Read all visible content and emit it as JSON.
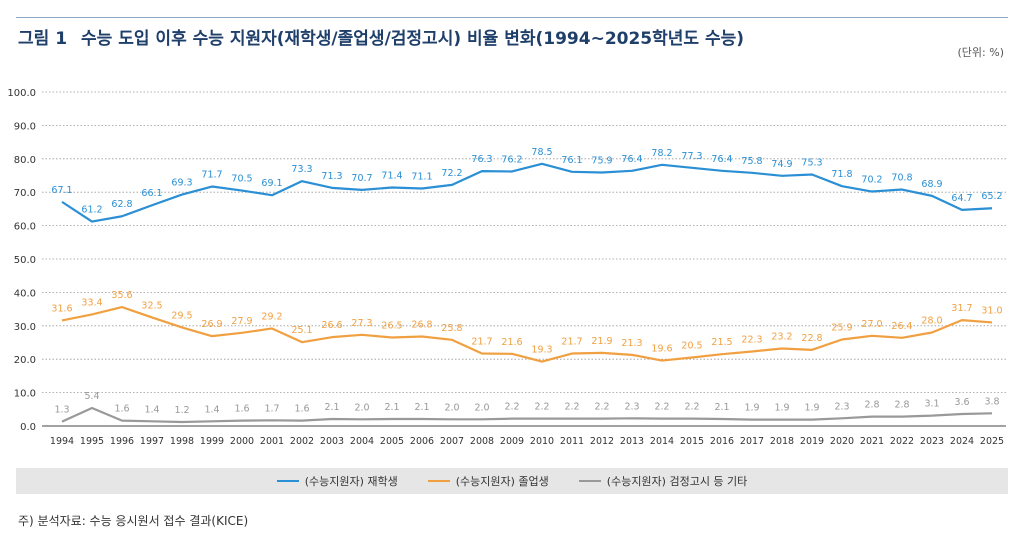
{
  "header": {
    "figure_label": "그림 1",
    "title": "수능 도입 이후 수능 지원자(재학생/졸업생/검정고시) 비율 변화(1994~2025학년도 수능)",
    "unit": "(단위: %)"
  },
  "footer": {
    "source": "주) 분석자료: 수능 응시원서 접수 결과(KICE)"
  },
  "chart_data": {
    "type": "line",
    "x": [
      "1994",
      "1995",
      "1996",
      "1997",
      "1998",
      "1999",
      "2000",
      "2001",
      "2002",
      "2003",
      "2004",
      "2005",
      "2006",
      "2007",
      "2008",
      "2009",
      "2010",
      "2011",
      "2012",
      "2013",
      "2014",
      "2015",
      "2016",
      "2017",
      "2018",
      "2019",
      "2020",
      "2021",
      "2022",
      "2023",
      "2024",
      "2025"
    ],
    "ylim": [
      0,
      100
    ],
    "yticks": [
      "0.0",
      "10.0",
      "20.0",
      "30.0",
      "40.0",
      "50.0",
      "60.0",
      "70.0",
      "80.0",
      "90.0",
      "100.0"
    ],
    "grid": true,
    "legend_position": "bottom",
    "series": [
      {
        "name": "(수능지원자) 재학생",
        "color": "#2a8fd4",
        "values": [
          67.1,
          61.2,
          62.8,
          66.1,
          69.3,
          71.7,
          70.5,
          69.1,
          73.3,
          71.3,
          70.7,
          71.4,
          71.1,
          72.2,
          76.3,
          76.2,
          78.5,
          76.1,
          75.9,
          76.4,
          78.2,
          77.3,
          76.4,
          75.8,
          74.9,
          75.3,
          71.8,
          70.2,
          70.8,
          68.9,
          64.7,
          65.2
        ],
        "labels": [
          "67.1",
          "61.2",
          "62.8",
          "66.1",
          "69.3",
          "71.7",
          "70.5",
          "69.1",
          "73.3",
          "71.3",
          "70.7",
          "71.4",
          "71.1",
          "72.2",
          "76.3",
          "76.2",
          "78.5",
          "76.1",
          "75.9",
          "76.4",
          "78.2",
          "77.3",
          "76.4",
          "75.8",
          "74.9",
          "75.3",
          "71.8",
          "70.2",
          "70.8",
          "68.9",
          "64.7",
          "65.2"
        ]
      },
      {
        "name": "(수능지원자) 졸업생",
        "color": "#f0a040",
        "values": [
          31.6,
          33.4,
          35.6,
          32.5,
          29.5,
          26.9,
          27.9,
          29.2,
          25.1,
          26.6,
          27.3,
          26.5,
          26.8,
          25.8,
          21.7,
          21.6,
          19.3,
          21.7,
          21.9,
          21.3,
          19.6,
          20.5,
          21.5,
          22.3,
          23.2,
          22.8,
          25.9,
          27.0,
          26.4,
          28.0,
          31.7,
          31.0
        ],
        "labels": [
          "31.6",
          "33.4",
          "35.6",
          "32.5",
          "29.5",
          "26.9",
          "27.9",
          "29.2",
          "25.1",
          "26.6",
          "27.3",
          "26.5",
          "26.8",
          "25.8",
          "21.7",
          "21.6",
          "19.3",
          "21.7",
          "21.9",
          "21.3",
          "19.6",
          "20.5",
          "21.5",
          "22.3",
          "23.2",
          "22.8",
          "25.9",
          "27.0",
          "26.4",
          "28.0",
          "31.7",
          "31.0"
        ]
      },
      {
        "name": "(수능지원자) 검정고시 등 기타",
        "color": "#999999",
        "values": [
          1.3,
          5.4,
          1.6,
          1.4,
          1.2,
          1.4,
          1.6,
          1.7,
          1.6,
          2.1,
          2.0,
          2.1,
          2.1,
          2.0,
          2.0,
          2.2,
          2.2,
          2.2,
          2.2,
          2.3,
          2.2,
          2.2,
          2.1,
          1.9,
          1.9,
          1.9,
          2.3,
          2.8,
          2.8,
          3.1,
          3.6,
          3.8
        ],
        "labels": [
          "1.3",
          "5.4",
          "1.6",
          "1.4",
          "1.2",
          "1.4",
          "1.6",
          "1.7",
          "1.6",
          "2.1",
          "2.0",
          "2.1",
          "2.1",
          "2.0",
          "2.0",
          "2.2",
          "2.2",
          "2.2",
          "2.2",
          "2.3",
          "2.2",
          "2.2",
          "2.1",
          "1.9",
          "1.9",
          "1.9",
          "2.3",
          "2.8",
          "2.8",
          "3.1",
          "3.6",
          "3.8"
        ]
      }
    ]
  }
}
